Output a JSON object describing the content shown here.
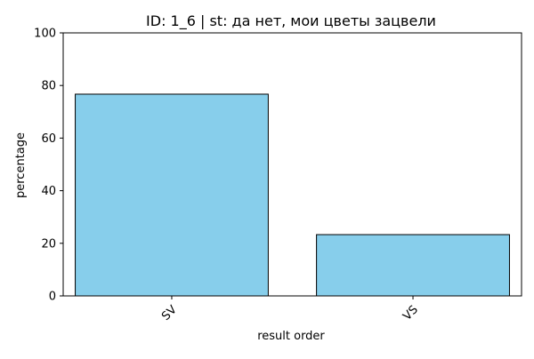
{
  "chart_data": {
    "type": "bar",
    "title": "ID: 1_6 | st: да нет, мои цветы зацвели",
    "xlabel": "result order",
    "ylabel": "percentage",
    "categories": [
      "SV",
      "VS"
    ],
    "values": [
      76.7,
      23.3
    ],
    "ylim": [
      0,
      100
    ],
    "yticks": [
      0,
      20,
      40,
      60,
      80,
      100
    ],
    "grid": false,
    "legend": "none",
    "bar_color": "#87CEEB",
    "edge_color": "#000000"
  }
}
